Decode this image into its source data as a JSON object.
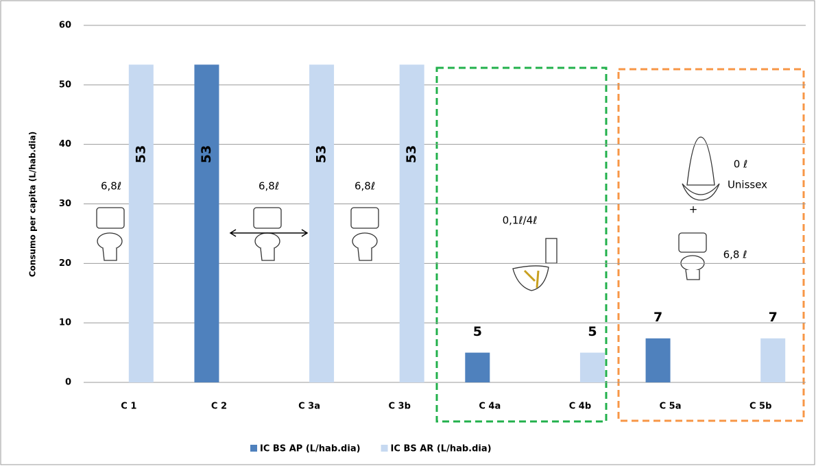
{
  "chart_data": {
    "type": "bar",
    "y_label": "Consumo per capita  (L/hab.dia)",
    "categories": [
      "C 1",
      "C 2",
      "C 3a",
      "C 3b",
      "C 4a",
      "C 4b",
      "C 5a",
      "C 5b"
    ],
    "series": [
      {
        "name": "IC BS AP (L/hab.dia)",
        "color": "#4f81bd",
        "values": [
          null,
          53.4,
          null,
          null,
          5,
          null,
          7.4,
          null
        ],
        "value_labels": [
          null,
          "53",
          null,
          null,
          "5",
          null,
          "7",
          null
        ]
      },
      {
        "name": "IC BS AR (L/hab.dia)",
        "color": "#c6d9f1",
        "values": [
          53.4,
          null,
          53.4,
          53.4,
          null,
          5,
          null,
          7.4
        ],
        "value_labels": [
          "53",
          null,
          "53",
          "53",
          null,
          "5",
          null,
          "7"
        ]
      }
    ],
    "ylim": [
      0,
      60
    ],
    "yticks": [
      0,
      10,
      20,
      30,
      40,
      50,
      60
    ],
    "grid": true,
    "legend": "bottom",
    "annotations": [
      "6,8ℓ",
      "6,8ℓ",
      "6,8ℓ",
      "0,1ℓ/4ℓ",
      "0 ℓ",
      "Unissex",
      "+",
      "6,8 ℓ"
    ]
  }
}
